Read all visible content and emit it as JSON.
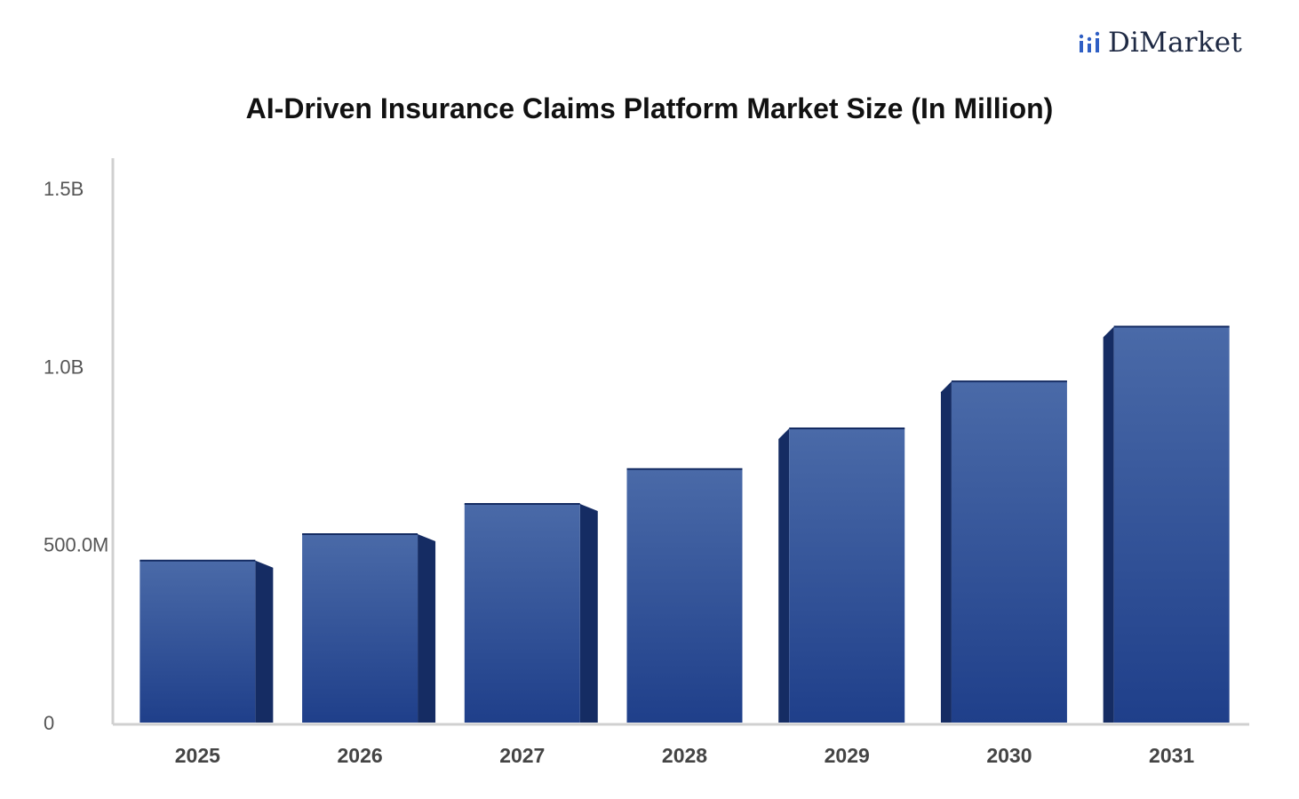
{
  "brand": {
    "name": "DiMarket",
    "icon": "bar-chart-icon",
    "color": "#2f5fc4"
  },
  "chart_data": {
    "type": "bar",
    "title": "AI-Driven Insurance Claims Platform Market Size (In Million)",
    "categories": [
      "2025",
      "2026",
      "2027",
      "2028",
      "2029",
      "2030",
      "2031"
    ],
    "values": [
      455,
      529,
      614,
      712,
      826,
      958,
      1112
    ],
    "ylim": [
      0,
      1500
    ],
    "yticks": [
      {
        "value": 0,
        "label": "0"
      },
      {
        "value": 500,
        "label": "500.0M"
      },
      {
        "value": 1000,
        "label": "1.0B"
      },
      {
        "value": 1500,
        "label": "1.5B"
      }
    ],
    "xlabel": "",
    "ylabel": "",
    "grid": false,
    "colors": {
      "bar_top": "#4a6aa8",
      "bar_bottom": "#1f3f8a",
      "bar_side": "#152c63",
      "axis": "#d0d0d0"
    }
  }
}
